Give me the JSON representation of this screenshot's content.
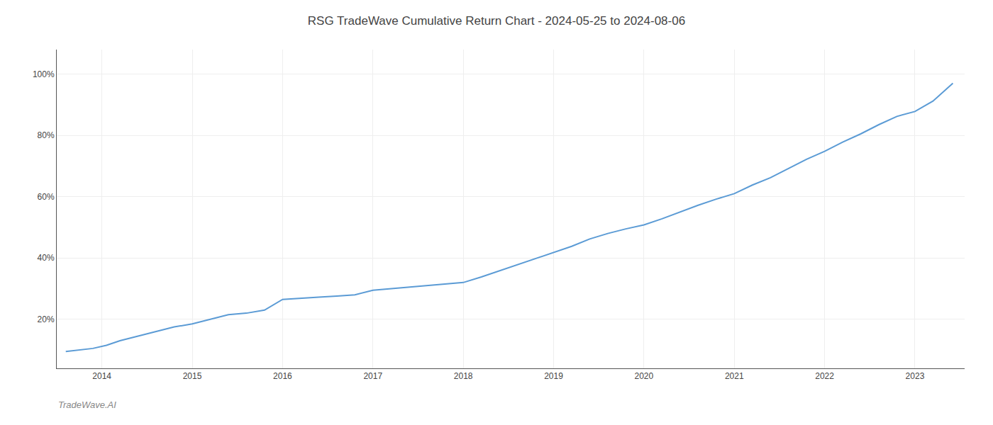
{
  "chart_data": {
    "type": "line",
    "title": "RSG TradeWave Cumulative Return Chart - 2024-05-25 to 2024-08-06",
    "annotations": [
      "TradeWave.AI"
    ],
    "color": "#5b9bd5",
    "x": [
      2013.6,
      2013.75,
      2013.9,
      2014.05,
      2014.2,
      2014.4,
      2014.6,
      2014.8,
      2015.0,
      2015.2,
      2015.4,
      2015.6,
      2015.8,
      2016.0,
      2016.2,
      2016.4,
      2016.6,
      2016.8,
      2017.0,
      2017.2,
      2017.4,
      2017.6,
      2017.8,
      2018.0,
      2018.2,
      2018.4,
      2018.6,
      2018.8,
      2019.0,
      2019.2,
      2019.4,
      2019.6,
      2019.8,
      2020.0,
      2020.2,
      2020.4,
      2020.6,
      2020.8,
      2021.0,
      2021.2,
      2021.4,
      2021.6,
      2021.8,
      2022.0,
      2022.2,
      2022.4,
      2022.6,
      2022.8,
      2023.0,
      2023.2,
      2023.42
    ],
    "values": [
      0.095,
      0.1,
      0.105,
      0.115,
      0.13,
      0.145,
      0.16,
      0.175,
      0.185,
      0.2,
      0.215,
      0.22,
      0.23,
      0.265,
      0.268,
      0.272,
      0.276,
      0.28,
      0.295,
      0.3,
      0.305,
      0.31,
      0.315,
      0.32,
      0.338,
      0.358,
      0.378,
      0.398,
      0.418,
      0.438,
      0.462,
      0.48,
      0.495,
      0.508,
      0.528,
      0.55,
      0.572,
      0.592,
      0.61,
      0.638,
      0.662,
      0.692,
      0.722,
      0.748,
      0.778,
      0.805,
      0.835,
      0.862,
      0.878,
      0.912,
      0.97
    ],
    "xlim": [
      2013.5,
      2023.55
    ],
    "xticks": [
      2014,
      2015,
      2016,
      2017,
      2018,
      2019,
      2020,
      2021,
      2022,
      2023
    ],
    "ylim": [
      0.04,
      1.08
    ],
    "yticks": [
      {
        "value": 0.2,
        "label": "20%"
      },
      {
        "value": 0.4,
        "label": "40%"
      },
      {
        "value": 0.6,
        "label": "60%"
      },
      {
        "value": 0.8,
        "label": "80%"
      },
      {
        "value": 1.0,
        "label": "100%"
      }
    ],
    "grid": true
  }
}
